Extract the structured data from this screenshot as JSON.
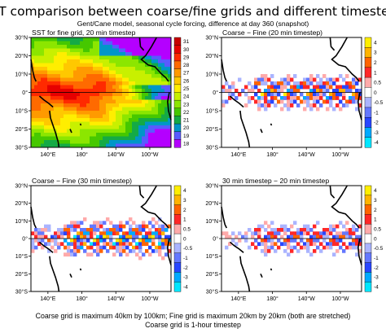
{
  "figure": {
    "title": "SST comparison between coarse/fine grids and different timesteps",
    "subtitle": "Gent/Cane model, seasonal cycle forcing, difference at day 360 (snapshot)",
    "footer_line1": "Coarse grid is maximum 40km by 100km; Fine grid is maximum 20km by 20km (both are stretched)",
    "footer_line2": "Coarse grid is 1-hour timestep"
  },
  "chart_data": [
    {
      "type": "heatmap",
      "title": "SST for fine grid, 20 min timestep",
      "x_ticks": [
        "140°E",
        "180°",
        "140°W",
        "100°W"
      ],
      "y_ticks": [
        "30°N",
        "20°N",
        "10°N",
        "0°",
        "10°S",
        "20°S",
        "30°S"
      ],
      "colorbar_levels": [
        "31",
        "30",
        "29",
        "28",
        "27",
        "26",
        "25",
        "24",
        "23",
        "22",
        "21",
        "20",
        "19",
        "18"
      ],
      "colorbar_colors": [
        "#c80000",
        "#e60000",
        "#ff2a00",
        "#ff6a00",
        "#ff9a00",
        "#ffc800",
        "#ffee00",
        "#c8f000",
        "#8ce600",
        "#46c800",
        "#14aa46",
        "#0096c8",
        "#5a5aff",
        "#b400ff"
      ]
    },
    {
      "type": "heatmap",
      "title": "Coarse − Fine (20 min timestep)",
      "x_ticks": [
        "140°E",
        "180°",
        "140°W",
        "100°W"
      ],
      "y_ticks": [
        "30°N",
        "20°N",
        "10°N",
        "0°",
        "10°S",
        "20°S",
        "30°S"
      ],
      "colorbar_levels": [
        "4",
        "3",
        "2",
        "1",
        "0.5",
        "0",
        "-0.5",
        "-1",
        "-2",
        "-3",
        "-4"
      ],
      "colorbar_colors": [
        "#ffee00",
        "#ffb400",
        "#ff6400",
        "#ff2828",
        "#ffaaaa",
        "#ffffff",
        "#aab4ff",
        "#6478ff",
        "#2846ff",
        "#00aaff",
        "#00e6ff"
      ]
    },
    {
      "type": "heatmap",
      "title": "Coarse − Fine (30 min timestep)",
      "x_ticks": [
        "140°E",
        "180°",
        "140°W",
        "100°W"
      ],
      "y_ticks": [
        "30°N",
        "20°N",
        "10°N",
        "0°",
        "10°S",
        "20°S",
        "30°S"
      ],
      "colorbar_levels": [
        "4",
        "3",
        "2",
        "1",
        "0.5",
        "0",
        "-0.5",
        "-1",
        "-2",
        "-3",
        "-4"
      ],
      "colorbar_colors": [
        "#ffee00",
        "#ffb400",
        "#ff6400",
        "#ff2828",
        "#ffaaaa",
        "#ffffff",
        "#aab4ff",
        "#6478ff",
        "#2846ff",
        "#00aaff",
        "#00e6ff"
      ]
    },
    {
      "type": "heatmap",
      "title": "30 min timestep − 20 min timestep",
      "x_ticks": [
        "140°E",
        "180°",
        "140°W",
        "100°W"
      ],
      "y_ticks": [
        "30°N",
        "20°N",
        "10°N",
        "0°",
        "10°S",
        "20°S",
        "30°S"
      ],
      "colorbar_levels": [
        "4",
        "3",
        "2",
        "1",
        "0.5",
        "0",
        "-0.5",
        "-1",
        "-2",
        "-3",
        "-4"
      ],
      "colorbar_colors": [
        "#ffee00",
        "#ffb400",
        "#ff6400",
        "#ff2828",
        "#ffaaaa",
        "#ffffff",
        "#aab4ff",
        "#6478ff",
        "#2846ff",
        "#00aaff",
        "#00e6ff"
      ]
    }
  ]
}
